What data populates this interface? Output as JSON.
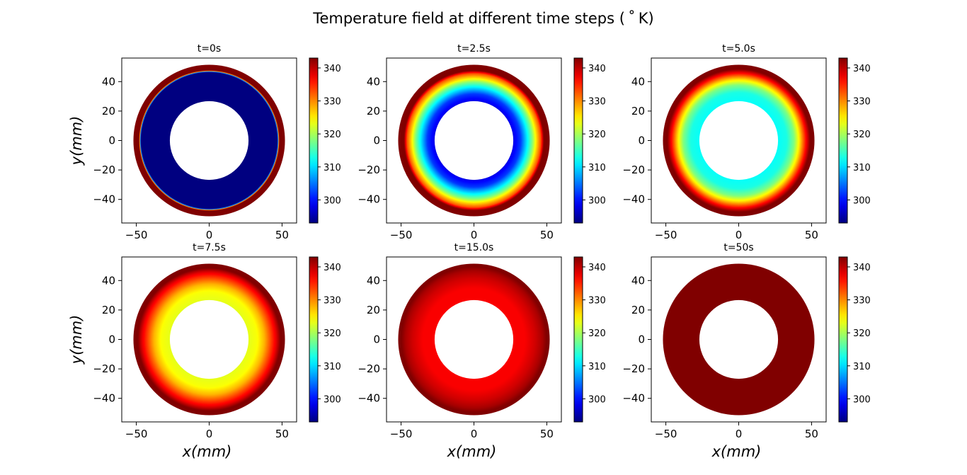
{
  "figure_title": "Temperature field at different time steps ($^\\circ$K)",
  "figure_title_display": "Temperature field at different time steps ( ˚ K)",
  "axis_labels": {
    "x": "x(mm)",
    "y": "y(mm)"
  },
  "colormap": "jet",
  "colorbar": {
    "min": 293,
    "max": 343,
    "ticks": [
      300,
      310,
      320,
      330,
      340
    ]
  },
  "chart_data": [
    {
      "type": "heatmap",
      "title": "t=0s",
      "xlim": [
        -60,
        60
      ],
      "ylim": [
        -56,
        56
      ],
      "xticks": [
        -50,
        0,
        50
      ],
      "yticks": [
        -40,
        -20,
        0,
        20,
        40
      ],
      "ring": {
        "inner_radius": 27,
        "outer_radius": 52
      },
      "radial_temperature": {
        "r": [
          27,
          47,
          48,
          52
        ],
        "T": [
          293,
          293,
          343,
          343
        ]
      }
    },
    {
      "type": "heatmap",
      "title": "t=2.5s",
      "xlim": [
        -60,
        60
      ],
      "ylim": [
        -56,
        56
      ],
      "xticks": [
        -50,
        0,
        50
      ],
      "yticks": [
        -40,
        -20,
        0,
        20,
        40
      ],
      "ring": {
        "inner_radius": 27,
        "outer_radius": 52
      },
      "radial_temperature": {
        "r": [
          27,
          32,
          36,
          40,
          43,
          46,
          48,
          52
        ],
        "T": [
          298,
          302,
          310,
          318,
          326,
          333,
          343,
          343
        ]
      }
    },
    {
      "type": "heatmap",
      "title": "t=5.0s",
      "xlim": [
        -60,
        60
      ],
      "ylim": [
        -56,
        56
      ],
      "xticks": [
        -50,
        0,
        50
      ],
      "yticks": [
        -40,
        -20,
        0,
        20,
        40
      ],
      "ring": {
        "inner_radius": 27,
        "outer_radius": 52
      },
      "radial_temperature": {
        "r": [
          27,
          33,
          38,
          42,
          46,
          49,
          52
        ],
        "T": [
          312,
          313,
          318,
          326,
          336,
          343,
          343
        ]
      }
    },
    {
      "type": "heatmap",
      "title": "t=7.5s",
      "xlim": [
        -60,
        60
      ],
      "ylim": [
        -56,
        56
      ],
      "xticks": [
        -50,
        0,
        50
      ],
      "yticks": [
        -40,
        -20,
        0,
        20,
        40
      ],
      "ring": {
        "inner_radius": 27,
        "outer_radius": 52
      },
      "radial_temperature": {
        "r": [
          27,
          33,
          38,
          42,
          46,
          49,
          52
        ],
        "T": [
          323,
          324,
          328,
          333,
          338,
          343,
          343
        ]
      }
    },
    {
      "type": "heatmap",
      "title": "t=15.0s",
      "xlim": [
        -60,
        60
      ],
      "ylim": [
        -56,
        56
      ],
      "xticks": [
        -50,
        0,
        50
      ],
      "yticks": [
        -40,
        -20,
        0,
        20,
        40
      ],
      "ring": {
        "inner_radius": 27,
        "outer_radius": 52
      },
      "radial_temperature": {
        "r": [
          27,
          35,
          42,
          47,
          50,
          52
        ],
        "T": [
          337,
          337,
          339,
          341,
          343,
          343
        ]
      }
    },
    {
      "type": "heatmap",
      "title": "t=50s",
      "xlim": [
        -60,
        60
      ],
      "ylim": [
        -56,
        56
      ],
      "xticks": [
        -50,
        0,
        50
      ],
      "yticks": [
        -40,
        -20,
        0,
        20,
        40
      ],
      "ring": {
        "inner_radius": 27,
        "outer_radius": 52
      },
      "radial_temperature": {
        "r": [
          27,
          52
        ],
        "T": [
          343,
          343
        ]
      }
    }
  ]
}
